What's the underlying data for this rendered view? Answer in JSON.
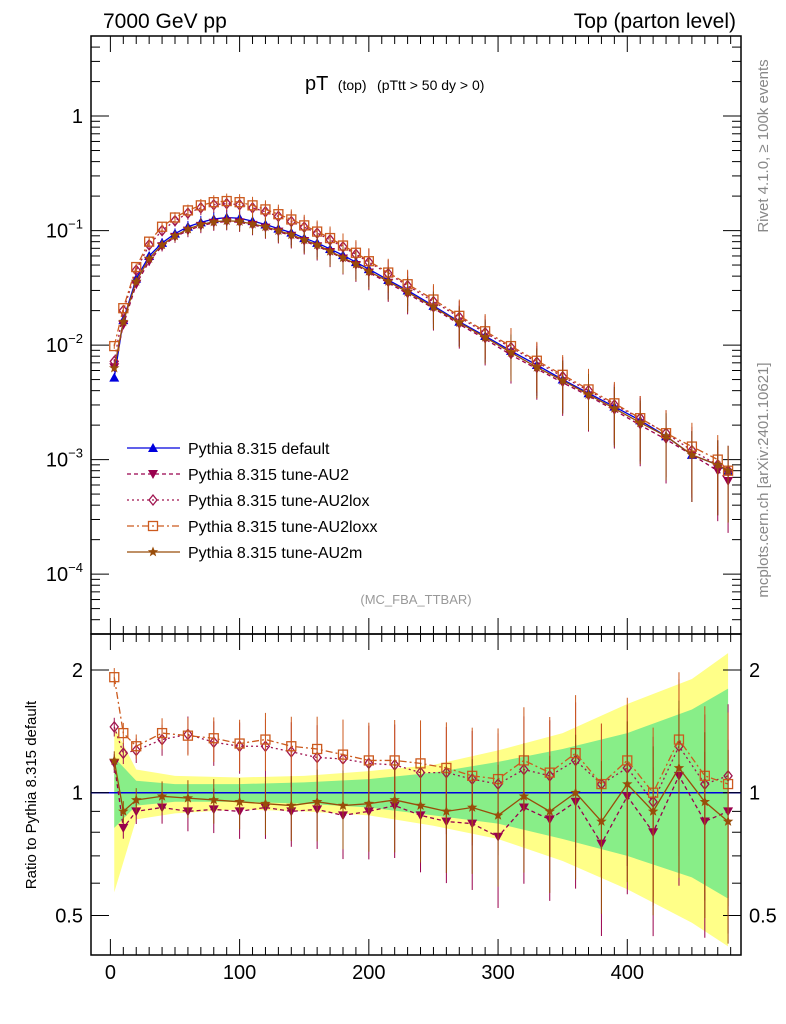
{
  "header": {
    "left": "7000 GeV pp",
    "right": "Top (parton level)"
  },
  "side_labels": {
    "rivet": "Rivet 4.1.0, ≥ 100k events",
    "mcplots": "mcplots.cern.ch [arXiv:2401.10621]"
  },
  "title": {
    "main": "pT",
    "sub1": "(top)",
    "sub2": "(pTtt > 50 dy > 0)"
  },
  "analysis_label": "(MC_FBA_TTBAR)",
  "colors": {
    "default": "#0000dd",
    "AU2": "#99004d",
    "AU2lox": "#a0144f",
    "AU2loxx": "#cc5a1e",
    "AU2m": "#994d0a",
    "band_yellow": "#ffff88",
    "band_green": "#88ee88"
  },
  "chart_data": [
    {
      "type": "line",
      "title": "pT (top) (pTtt > 50 dy > 0)",
      "xlabel": "",
      "ylabel": "",
      "yscale": "log",
      "xlim": [
        -15,
        488
      ],
      "ylim": [
        3e-05,
        5
      ],
      "xticks": [
        0,
        100,
        200,
        300,
        400
      ],
      "yticks": [
        {
          "value": 0.0001,
          "base": "10",
          "exp": "−4"
        },
        {
          "value": 0.001,
          "base": "10",
          "exp": "−3"
        },
        {
          "value": 0.01,
          "base": "10",
          "exp": "−2"
        },
        {
          "value": 0.1,
          "base": "10",
          "exp": "−1"
        },
        {
          "value": 1,
          "base": "1",
          "exp": ""
        }
      ],
      "series": [
        {
          "name": "Pythia 8.315 default",
          "key": "default",
          "x": [
            3,
            10,
            20,
            30,
            40,
            50,
            60,
            70,
            80,
            90,
            100,
            110,
            120,
            130,
            140,
            150,
            160,
            170,
            180,
            190,
            200,
            215,
            230,
            250,
            270,
            290,
            310,
            330,
            350,
            370,
            390,
            410,
            430,
            450,
            470,
            478
          ],
          "y": [
            0.0052,
            0.0165,
            0.038,
            0.06,
            0.078,
            0.094,
            0.108,
            0.118,
            0.126,
            0.13,
            0.128,
            0.121,
            0.113,
            0.104,
            0.096,
            0.086,
            0.078,
            0.069,
            0.061,
            0.053,
            0.046,
            0.037,
            0.03,
            0.022,
            0.016,
            0.012,
            0.0089,
            0.0067,
            0.005,
            0.0038,
            0.0029,
            0.0022,
            0.0016,
            0.0011,
            0.0009,
            0.0008
          ]
        },
        {
          "name": "Pythia 8.315 tune-AU2",
          "key": "AU2",
          "x": [
            3,
            10,
            20,
            30,
            40,
            50,
            60,
            70,
            80,
            90,
            100,
            110,
            120,
            130,
            140,
            150,
            160,
            170,
            180,
            190,
            200,
            215,
            230,
            250,
            270,
            290,
            310,
            330,
            350,
            370,
            390,
            410,
            430,
            450,
            470,
            478
          ],
          "y": [
            0.0064,
            0.015,
            0.034,
            0.054,
            0.073,
            0.088,
            0.1,
            0.11,
            0.117,
            0.12,
            0.118,
            0.112,
            0.106,
            0.098,
            0.09,
            0.081,
            0.073,
            0.065,
            0.057,
            0.05,
            0.043,
            0.035,
            0.028,
            0.021,
            0.0152,
            0.0113,
            0.0082,
            0.0062,
            0.0047,
            0.0036,
            0.0027,
            0.002,
            0.0015,
            0.0011,
            0.0008,
            0.00065
          ]
        },
        {
          "name": "Pythia 8.315 tune-AU2lox",
          "key": "AU2lox",
          "x": [
            3,
            10,
            20,
            30,
            40,
            50,
            60,
            70,
            80,
            90,
            100,
            110,
            120,
            130,
            140,
            150,
            160,
            170,
            180,
            190,
            200,
            215,
            230,
            250,
            270,
            290,
            310,
            330,
            350,
            370,
            390,
            410,
            430,
            450,
            470,
            478
          ],
          "y": [
            0.0072,
            0.02,
            0.045,
            0.075,
            0.1,
            0.122,
            0.142,
            0.158,
            0.168,
            0.172,
            0.168,
            0.158,
            0.146,
            0.133,
            0.12,
            0.107,
            0.095,
            0.083,
            0.072,
            0.062,
            0.053,
            0.042,
            0.033,
            0.024,
            0.0175,
            0.0128,
            0.0095,
            0.0071,
            0.0053,
            0.004,
            0.003,
            0.0023,
            0.0017,
            0.0012,
            0.0009,
            0.0008
          ]
        },
        {
          "name": "Pythia 8.315 tune-AU2loxx",
          "key": "AU2loxx",
          "x": [
            3,
            10,
            20,
            30,
            40,
            50,
            60,
            70,
            80,
            90,
            100,
            110,
            120,
            130,
            140,
            150,
            160,
            170,
            180,
            190,
            200,
            215,
            230,
            250,
            270,
            290,
            310,
            330,
            350,
            370,
            390,
            410,
            430,
            450,
            470,
            478
          ],
          "y": [
            0.0098,
            0.021,
            0.048,
            0.08,
            0.108,
            0.13,
            0.15,
            0.166,
            0.177,
            0.181,
            0.177,
            0.166,
            0.153,
            0.139,
            0.125,
            0.111,
            0.098,
            0.086,
            0.074,
            0.064,
            0.054,
            0.043,
            0.034,
            0.025,
            0.018,
            0.0132,
            0.0098,
            0.0073,
            0.0055,
            0.0041,
            0.0031,
            0.0023,
            0.0017,
            0.0013,
            0.001,
            0.0008
          ]
        },
        {
          "name": "Pythia 8.315 tune-AU2m",
          "key": "AU2m",
          "x": [
            3,
            10,
            20,
            30,
            40,
            50,
            60,
            70,
            80,
            90,
            100,
            110,
            120,
            130,
            140,
            150,
            160,
            170,
            180,
            190,
            200,
            215,
            230,
            250,
            270,
            290,
            310,
            330,
            350,
            370,
            390,
            410,
            430,
            450,
            470,
            478
          ],
          "y": [
            0.0063,
            0.016,
            0.036,
            0.057,
            0.075,
            0.09,
            0.103,
            0.113,
            0.119,
            0.122,
            0.12,
            0.114,
            0.108,
            0.1,
            0.092,
            0.083,
            0.075,
            0.066,
            0.058,
            0.051,
            0.044,
            0.036,
            0.029,
            0.0215,
            0.0157,
            0.0117,
            0.0086,
            0.0064,
            0.0049,
            0.0037,
            0.0028,
            0.0021,
            0.0016,
            0.0011,
            0.0009,
            0.0008
          ]
        }
      ]
    },
    {
      "type": "line",
      "title": "",
      "xlabel": "",
      "ylabel": "Ratio to Pythia 8.315 default",
      "yscale": "log",
      "xlim": [
        -15,
        488
      ],
      "ylim": [
        0.4,
        2.45
      ],
      "xticks": [
        0,
        100,
        200,
        300,
        400
      ],
      "yticks": [
        {
          "value": 0.5,
          "label": "0.5"
        },
        {
          "value": 1,
          "label": "1"
        },
        {
          "value": 2,
          "label": "2"
        }
      ],
      "bands": {
        "x": [
          3,
          20,
          50,
          100,
          150,
          200,
          250,
          300,
          350,
          400,
          450,
          478
        ],
        "yellow_lo": [
          0.57,
          0.86,
          0.89,
          0.91,
          0.9,
          0.88,
          0.83,
          0.77,
          0.68,
          0.58,
          0.48,
          0.42
        ],
        "yellow_hi": [
          1.45,
          1.14,
          1.1,
          1.09,
          1.1,
          1.13,
          1.17,
          1.27,
          1.4,
          1.65,
          1.9,
          2.2
        ],
        "green_lo": [
          0.82,
          0.93,
          0.95,
          0.95,
          0.94,
          0.92,
          0.88,
          0.84,
          0.77,
          0.7,
          0.62,
          0.55
        ],
        "green_hi": [
          1.22,
          1.07,
          1.05,
          1.05,
          1.06,
          1.08,
          1.12,
          1.19,
          1.28,
          1.4,
          1.6,
          1.8
        ]
      },
      "series": [
        {
          "name": "Pythia 8.315 tune-AU2",
          "key": "AU2",
          "x": [
            3,
            10,
            20,
            40,
            60,
            80,
            100,
            120,
            140,
            160,
            180,
            200,
            220,
            240,
            260,
            280,
            300,
            320,
            340,
            360,
            380,
            400,
            420,
            440,
            460,
            478
          ],
          "y": [
            1.18,
            0.82,
            0.9,
            0.92,
            0.9,
            0.91,
            0.9,
            0.92,
            0.9,
            0.91,
            0.88,
            0.9,
            0.93,
            0.88,
            0.85,
            0.84,
            0.78,
            0.92,
            0.86,
            0.95,
            0.75,
            0.98,
            0.8,
            1.1,
            0.85,
            0.9
          ]
        },
        {
          "name": "Pythia 8.315 tune-AU2lox",
          "key": "AU2lox",
          "x": [
            3,
            10,
            20,
            40,
            60,
            80,
            100,
            120,
            140,
            160,
            180,
            200,
            220,
            240,
            260,
            280,
            300,
            320,
            340,
            360,
            380,
            400,
            420,
            440,
            460,
            478
          ],
          "y": [
            1.45,
            1.25,
            1.27,
            1.35,
            1.39,
            1.33,
            1.3,
            1.3,
            1.26,
            1.22,
            1.21,
            1.18,
            1.17,
            1.12,
            1.12,
            1.08,
            1.05,
            1.14,
            1.1,
            1.2,
            1.05,
            1.15,
            0.95,
            1.3,
            1.05,
            1.1
          ]
        },
        {
          "name": "Pythia 8.315 tune-AU2loxx",
          "key": "AU2loxx",
          "x": [
            3,
            10,
            20,
            40,
            60,
            80,
            100,
            120,
            140,
            160,
            180,
            200,
            220,
            240,
            260,
            280,
            300,
            320,
            340,
            360,
            380,
            400,
            420,
            440,
            460,
            478
          ],
          "y": [
            1.92,
            1.4,
            1.3,
            1.4,
            1.38,
            1.36,
            1.32,
            1.35,
            1.3,
            1.28,
            1.24,
            1.2,
            1.2,
            1.18,
            1.15,
            1.1,
            1.08,
            1.2,
            1.12,
            1.25,
            1.05,
            1.2,
            1.0,
            1.35,
            1.1,
            1.05
          ]
        },
        {
          "name": "Pythia 8.315 tune-AU2m",
          "key": "AU2m",
          "x": [
            3,
            10,
            20,
            40,
            60,
            80,
            100,
            120,
            140,
            160,
            180,
            200,
            220,
            240,
            260,
            280,
            300,
            320,
            340,
            360,
            380,
            400,
            420,
            440,
            460,
            478
          ],
          "y": [
            1.2,
            0.9,
            0.96,
            0.98,
            0.97,
            0.96,
            0.95,
            0.94,
            0.93,
            0.95,
            0.93,
            0.94,
            0.96,
            0.93,
            0.9,
            0.92,
            0.88,
            0.98,
            0.9,
            1.0,
            0.85,
            1.05,
            0.9,
            1.15,
            0.95,
            0.85
          ]
        }
      ]
    }
  ]
}
